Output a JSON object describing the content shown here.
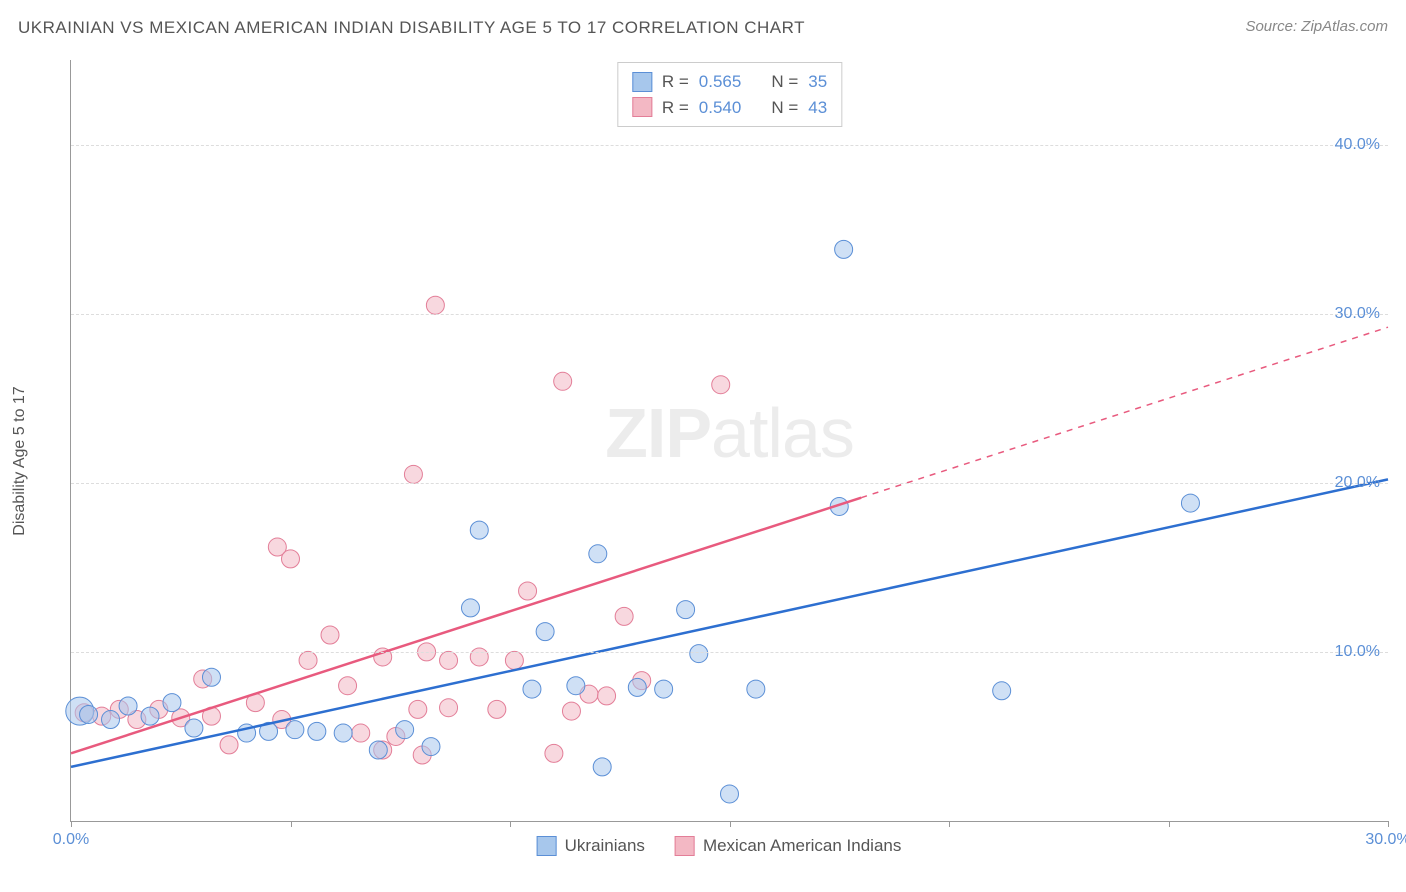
{
  "header": {
    "title": "UKRAINIAN VS MEXICAN AMERICAN INDIAN DISABILITY AGE 5 TO 17 CORRELATION CHART",
    "source": "Source: ZipAtlas.com"
  },
  "y_axis": {
    "label": "Disability Age 5 to 17"
  },
  "watermark": {
    "zip": "ZIP",
    "atlas": "atlas"
  },
  "chart": {
    "type": "scatter",
    "xlim": [
      0,
      30
    ],
    "ylim": [
      0,
      45
    ],
    "x_ticks": [
      0,
      5,
      10,
      15,
      20,
      25,
      30
    ],
    "x_tick_labels": {
      "0": "0.0%",
      "30": "30.0%"
    },
    "y_ticks": [
      10,
      20,
      30,
      40
    ],
    "y_tick_labels": {
      "10": "10.0%",
      "20": "20.0%",
      "30": "30.0%",
      "40": "40.0%"
    },
    "grid_color": "#dddddd",
    "axis_color": "#999999",
    "background_color": "#ffffff",
    "marker_radius": 9,
    "marker_radius_large": 14,
    "marker_opacity": 0.55,
    "series": [
      {
        "name": "Ukrainians",
        "fill": "#a7c7ec",
        "stroke": "#5b8fd6",
        "trend_line": {
          "x1": 0,
          "y1": 3.2,
          "x2": 30,
          "y2": 20.2,
          "stroke": "#2d6fd0",
          "stroke_width": 2.5,
          "dash_from_x": null
        },
        "stats": {
          "R": "0.565",
          "N": "35"
        },
        "points": [
          {
            "x": 0.2,
            "y": 6.5,
            "r": 14
          },
          {
            "x": 0.4,
            "y": 6.3
          },
          {
            "x": 0.9,
            "y": 6.0
          },
          {
            "x": 1.3,
            "y": 6.8
          },
          {
            "x": 1.8,
            "y": 6.2
          },
          {
            "x": 2.3,
            "y": 7.0
          },
          {
            "x": 2.8,
            "y": 5.5
          },
          {
            "x": 3.2,
            "y": 8.5
          },
          {
            "x": 4.0,
            "y": 5.2
          },
          {
            "x": 4.5,
            "y": 5.3
          },
          {
            "x": 5.1,
            "y": 5.4
          },
          {
            "x": 5.6,
            "y": 5.3
          },
          {
            "x": 6.2,
            "y": 5.2
          },
          {
            "x": 7.0,
            "y": 4.2
          },
          {
            "x": 7.6,
            "y": 5.4
          },
          {
            "x": 8.2,
            "y": 4.4
          },
          {
            "x": 9.1,
            "y": 12.6
          },
          {
            "x": 9.3,
            "y": 17.2
          },
          {
            "x": 10.5,
            "y": 7.8
          },
          {
            "x": 10.8,
            "y": 11.2
          },
          {
            "x": 11.5,
            "y": 8.0
          },
          {
            "x": 12.0,
            "y": 15.8
          },
          {
            "x": 12.1,
            "y": 3.2
          },
          {
            "x": 12.9,
            "y": 7.9
          },
          {
            "x": 13.5,
            "y": 7.8
          },
          {
            "x": 14.0,
            "y": 12.5
          },
          {
            "x": 14.3,
            "y": 9.9
          },
          {
            "x": 15.0,
            "y": 1.6
          },
          {
            "x": 15.6,
            "y": 7.8
          },
          {
            "x": 17.5,
            "y": 18.6
          },
          {
            "x": 17.6,
            "y": 33.8
          },
          {
            "x": 21.2,
            "y": 7.7
          },
          {
            "x": 25.5,
            "y": 18.8
          }
        ]
      },
      {
        "name": "Mexican American Indians",
        "fill": "#f3b8c4",
        "stroke": "#e37e98",
        "trend_line": {
          "x1": 0,
          "y1": 4.0,
          "x2": 30,
          "y2": 29.2,
          "stroke": "#e85a7e",
          "stroke_width": 2.5,
          "dash_from_x": 18
        },
        "stats": {
          "R": "0.540",
          "N": "43"
        },
        "points": [
          {
            "x": 0.3,
            "y": 6.4
          },
          {
            "x": 0.7,
            "y": 6.2
          },
          {
            "x": 1.1,
            "y": 6.6
          },
          {
            "x": 1.5,
            "y": 6.0
          },
          {
            "x": 2.0,
            "y": 6.6
          },
          {
            "x": 2.5,
            "y": 6.1
          },
          {
            "x": 3.0,
            "y": 8.4
          },
          {
            "x": 3.2,
            "y": 6.2
          },
          {
            "x": 3.6,
            "y": 4.5
          },
          {
            "x": 4.2,
            "y": 7.0
          },
          {
            "x": 4.7,
            "y": 16.2
          },
          {
            "x": 4.8,
            "y": 6.0
          },
          {
            "x": 5.0,
            "y": 15.5
          },
          {
            "x": 5.4,
            "y": 9.5
          },
          {
            "x": 5.9,
            "y": 11.0
          },
          {
            "x": 6.3,
            "y": 8.0
          },
          {
            "x": 6.6,
            "y": 5.2
          },
          {
            "x": 7.1,
            "y": 4.2
          },
          {
            "x": 7.1,
            "y": 9.7
          },
          {
            "x": 7.4,
            "y": 5.0
          },
          {
            "x": 7.8,
            "y": 20.5
          },
          {
            "x": 7.9,
            "y": 6.6
          },
          {
            "x": 8.0,
            "y": 3.9
          },
          {
            "x": 8.1,
            "y": 10.0
          },
          {
            "x": 8.3,
            "y": 30.5
          },
          {
            "x": 8.6,
            "y": 6.7
          },
          {
            "x": 8.6,
            "y": 9.5
          },
          {
            "x": 9.3,
            "y": 9.7
          },
          {
            "x": 9.7,
            "y": 6.6
          },
          {
            "x": 10.1,
            "y": 9.5
          },
          {
            "x": 10.4,
            "y": 13.6
          },
          {
            "x": 11.0,
            "y": 4.0
          },
          {
            "x": 11.2,
            "y": 26.0
          },
          {
            "x": 11.4,
            "y": 6.5
          },
          {
            "x": 11.8,
            "y": 7.5
          },
          {
            "x": 12.2,
            "y": 7.4
          },
          {
            "x": 12.6,
            "y": 12.1
          },
          {
            "x": 13.0,
            "y": 8.3
          },
          {
            "x": 14.8,
            "y": 25.8
          }
        ]
      }
    ]
  },
  "legend_labels": {
    "R": "R =",
    "N": "N ="
  },
  "bottom_legend": [
    {
      "label": "Ukrainians",
      "fill": "#a7c7ec",
      "stroke": "#5b8fd6"
    },
    {
      "label": "Mexican American Indians",
      "fill": "#f3b8c4",
      "stroke": "#e37e98"
    }
  ]
}
